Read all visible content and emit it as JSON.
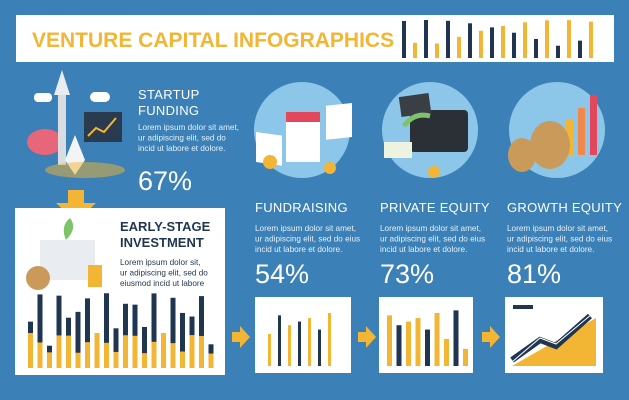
{
  "header": {
    "title": "VENTURE CAPITAL INFOGRAPHICS"
  },
  "sections": [
    {
      "title": [
        "STARTUP",
        "FUNDING"
      ],
      "text": [
        "Lorem ipsum dolor sit amet,",
        "ur adipiscing elit, sed do",
        "incid ut labore et dolore."
      ],
      "percent": "67%"
    },
    {
      "title": [
        "EARLY-STAGE",
        "INVESTMENT"
      ],
      "text": [
        "Lorem ipsum dolor sit,",
        "ur adipiscing elit, sed do",
        "eiusmod incid ut labore"
      ]
    },
    {
      "title": [
        "FUNDRAISING"
      ],
      "text": [
        "Lorem ipsum dolor sit amet,",
        "ur adipiscing elit, sed do eius",
        "incid ut labore et dolore."
      ],
      "percent": "54%"
    },
    {
      "title": [
        "PRIVATE EQUITY"
      ],
      "text": [
        "Lorem ipsum dolor sit amet,",
        "ur adipiscing elit, sed do eius",
        "incid ut labore et dolore."
      ],
      "percent": "73%"
    },
    {
      "title": [
        "GROWTH EQUITY"
      ],
      "text": [
        "Lorem ipsum dolor sit amet,",
        "ur adipiscing elit, sed do eius",
        "incid ut labore et dolore."
      ],
      "percent": "81%"
    }
  ]
}
